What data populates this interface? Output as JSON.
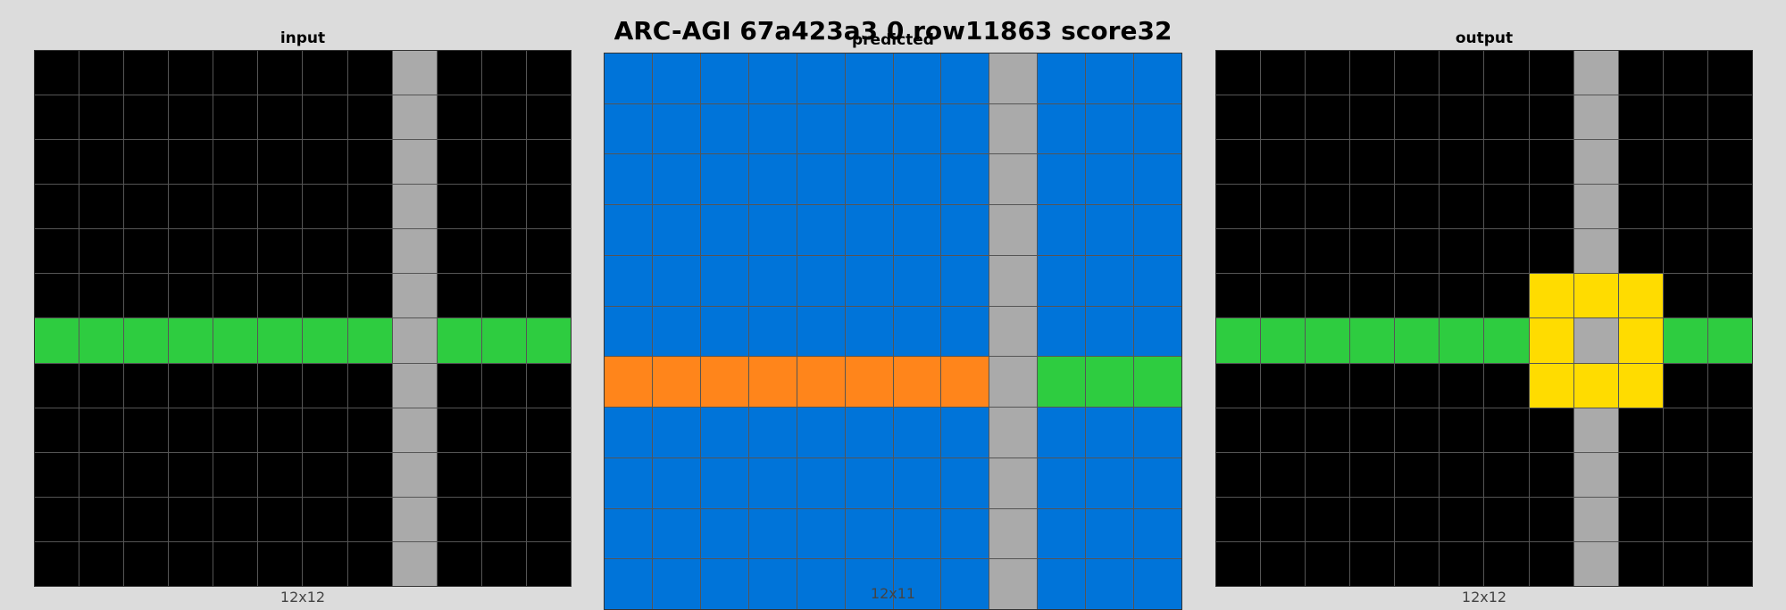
{
  "title": "ARC-AGI 67a423a3 0 row11863 score32",
  "palette": {
    "0": "#000000",
    "1": "#0074d9",
    "2": "#ff4136",
    "3": "#2ecc40",
    "4": "#ffdc00",
    "5": "#aaaaaa",
    "6": "#f012be",
    "7": "#ff851b",
    "8": "#7fdbff",
    "9": "#870c25"
  },
  "panels": [
    {
      "id": "input",
      "label": "input",
      "size_label": "12x12",
      "grid": [
        [
          0,
          0,
          0,
          0,
          0,
          0,
          0,
          0,
          5,
          0,
          0,
          0
        ],
        [
          0,
          0,
          0,
          0,
          0,
          0,
          0,
          0,
          5,
          0,
          0,
          0
        ],
        [
          0,
          0,
          0,
          0,
          0,
          0,
          0,
          0,
          5,
          0,
          0,
          0
        ],
        [
          0,
          0,
          0,
          0,
          0,
          0,
          0,
          0,
          5,
          0,
          0,
          0
        ],
        [
          0,
          0,
          0,
          0,
          0,
          0,
          0,
          0,
          5,
          0,
          0,
          0
        ],
        [
          0,
          0,
          0,
          0,
          0,
          0,
          0,
          0,
          5,
          0,
          0,
          0
        ],
        [
          3,
          3,
          3,
          3,
          3,
          3,
          3,
          3,
          5,
          3,
          3,
          3
        ],
        [
          0,
          0,
          0,
          0,
          0,
          0,
          0,
          0,
          5,
          0,
          0,
          0
        ],
        [
          0,
          0,
          0,
          0,
          0,
          0,
          0,
          0,
          5,
          0,
          0,
          0
        ],
        [
          0,
          0,
          0,
          0,
          0,
          0,
          0,
          0,
          5,
          0,
          0,
          0
        ],
        [
          0,
          0,
          0,
          0,
          0,
          0,
          0,
          0,
          5,
          0,
          0,
          0
        ],
        [
          0,
          0,
          0,
          0,
          0,
          0,
          0,
          0,
          5,
          0,
          0,
          0
        ]
      ]
    },
    {
      "id": "predicted",
      "label": "predicted",
      "size_label": "12x11",
      "grid": [
        [
          1,
          1,
          1,
          1,
          1,
          1,
          1,
          1,
          5,
          1,
          1,
          1
        ],
        [
          1,
          1,
          1,
          1,
          1,
          1,
          1,
          1,
          5,
          1,
          1,
          1
        ],
        [
          1,
          1,
          1,
          1,
          1,
          1,
          1,
          1,
          5,
          1,
          1,
          1
        ],
        [
          1,
          1,
          1,
          1,
          1,
          1,
          1,
          1,
          5,
          1,
          1,
          1
        ],
        [
          1,
          1,
          1,
          1,
          1,
          1,
          1,
          1,
          5,
          1,
          1,
          1
        ],
        [
          1,
          1,
          1,
          1,
          1,
          1,
          1,
          1,
          5,
          1,
          1,
          1
        ],
        [
          7,
          7,
          7,
          7,
          7,
          7,
          7,
          7,
          5,
          3,
          3,
          3
        ],
        [
          1,
          1,
          1,
          1,
          1,
          1,
          1,
          1,
          5,
          1,
          1,
          1
        ],
        [
          1,
          1,
          1,
          1,
          1,
          1,
          1,
          1,
          5,
          1,
          1,
          1
        ],
        [
          1,
          1,
          1,
          1,
          1,
          1,
          1,
          1,
          5,
          1,
          1,
          1
        ],
        [
          1,
          1,
          1,
          1,
          1,
          1,
          1,
          1,
          5,
          1,
          1,
          1
        ]
      ]
    },
    {
      "id": "output",
      "label": "output",
      "size_label": "12x12",
      "grid": [
        [
          0,
          0,
          0,
          0,
          0,
          0,
          0,
          0,
          5,
          0,
          0,
          0
        ],
        [
          0,
          0,
          0,
          0,
          0,
          0,
          0,
          0,
          5,
          0,
          0,
          0
        ],
        [
          0,
          0,
          0,
          0,
          0,
          0,
          0,
          0,
          5,
          0,
          0,
          0
        ],
        [
          0,
          0,
          0,
          0,
          0,
          0,
          0,
          0,
          5,
          0,
          0,
          0
        ],
        [
          0,
          0,
          0,
          0,
          0,
          0,
          0,
          0,
          5,
          0,
          0,
          0
        ],
        [
          0,
          0,
          0,
          0,
          0,
          0,
          0,
          4,
          4,
          4,
          0,
          0
        ],
        [
          3,
          3,
          3,
          3,
          3,
          3,
          3,
          4,
          5,
          4,
          3,
          3
        ],
        [
          0,
          0,
          0,
          0,
          0,
          0,
          0,
          4,
          4,
          4,
          0,
          0
        ],
        [
          0,
          0,
          0,
          0,
          0,
          0,
          0,
          0,
          5,
          0,
          0,
          0
        ],
        [
          0,
          0,
          0,
          0,
          0,
          0,
          0,
          0,
          5,
          0,
          0,
          0
        ],
        [
          0,
          0,
          0,
          0,
          0,
          0,
          0,
          0,
          5,
          0,
          0,
          0
        ],
        [
          0,
          0,
          0,
          0,
          0,
          0,
          0,
          0,
          5,
          0,
          0,
          0
        ]
      ]
    }
  ]
}
